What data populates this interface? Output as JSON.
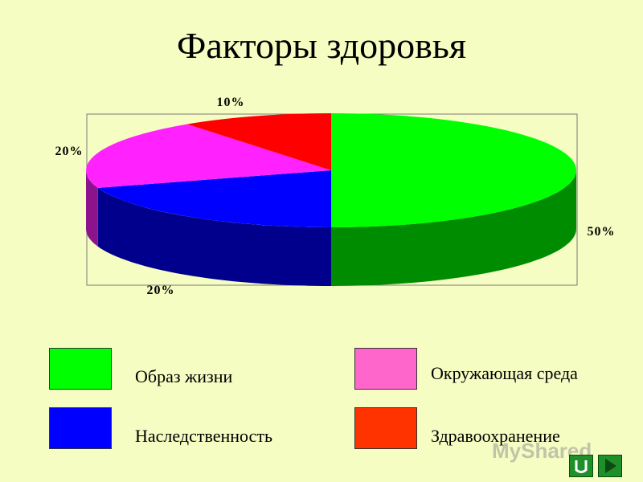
{
  "title": "Факторы здоровья",
  "chart_data": {
    "type": "pie",
    "title": "Факторы здоровья",
    "slices": [
      {
        "name": "Образ жизни",
        "value": 50,
        "label": "50%",
        "color": "#00ff00"
      },
      {
        "name": "Наследственность",
        "value": 20,
        "label": "20%",
        "color": "#0000ff"
      },
      {
        "name": "Окружающая среда",
        "value": 20,
        "label": "20%",
        "color": "#ff22ff"
      },
      {
        "name": "Здравоохранение",
        "value": 10,
        "label": "10%",
        "color": "#ff0000"
      }
    ],
    "style": "3d"
  },
  "legend": {
    "items": [
      {
        "label": "Образ жизни",
        "color": "#00ff00"
      },
      {
        "label": "Наследственность",
        "color": "#0000ff"
      },
      {
        "label": "Окружающая среда",
        "color": "#ff66cc"
      },
      {
        "label": "Здравоохранение",
        "color": "#ff3300"
      }
    ]
  },
  "nav": {
    "home_icon": "home-icon",
    "next_icon": "next-arrow-icon"
  },
  "watermark": "MyShared"
}
